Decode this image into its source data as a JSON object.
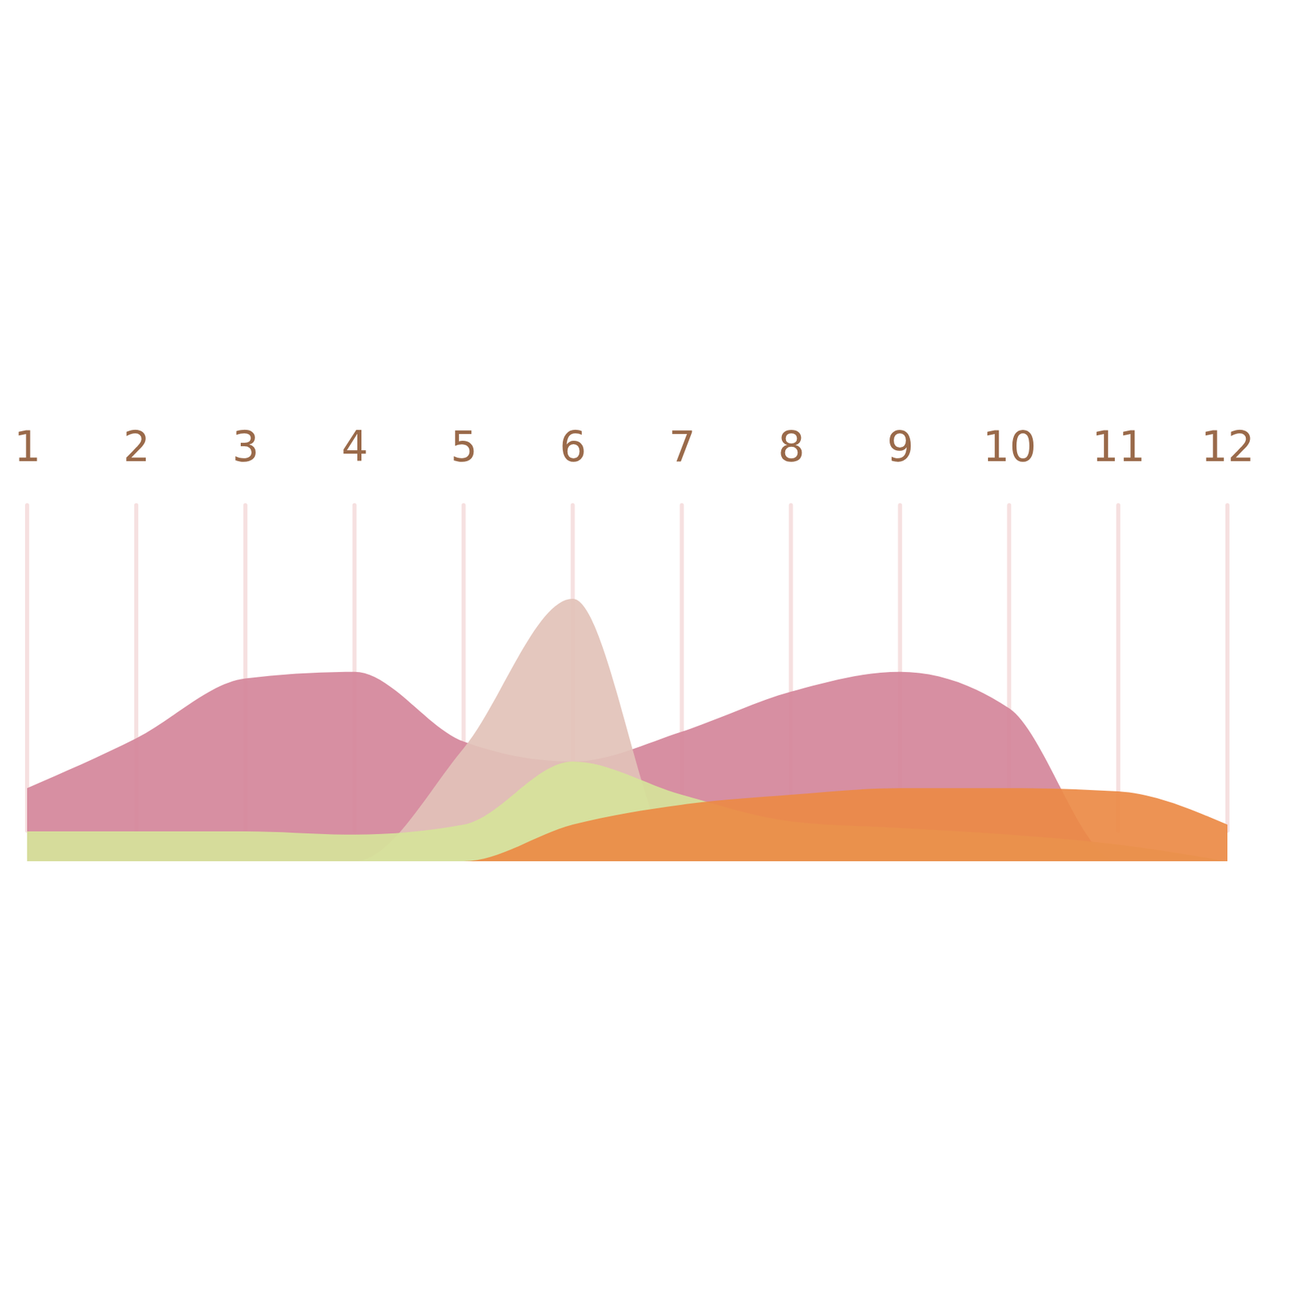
{
  "chart_data": {
    "type": "area",
    "categories": [
      "1",
      "2",
      "3",
      "4",
      "5",
      "6",
      "7",
      "8",
      "9",
      "10",
      "11",
      "12"
    ],
    "ylim": [
      0,
      100
    ],
    "grid": true,
    "tick_labels": "x",
    "series": [
      {
        "color": "#d4869a",
        "values": [
          22,
          37,
          55,
          57,
          36,
          30,
          39,
          51,
          57,
          46,
          0,
          0
        ]
      },
      {
        "color": "#e2c2b8",
        "values": [
          0,
          0,
          0,
          0,
          34,
          79,
          0,
          0,
          0,
          0,
          0,
          0
        ]
      },
      {
        "color": "#d6e39a",
        "values": [
          9,
          9,
          9,
          8,
          11,
          30,
          20,
          12,
          10,
          8,
          5,
          0
        ]
      },
      {
        "color": "#ec8a45",
        "values": [
          0,
          0,
          0,
          0,
          0,
          11,
          17,
          20,
          22,
          22,
          21,
          11
        ]
      }
    ]
  }
}
